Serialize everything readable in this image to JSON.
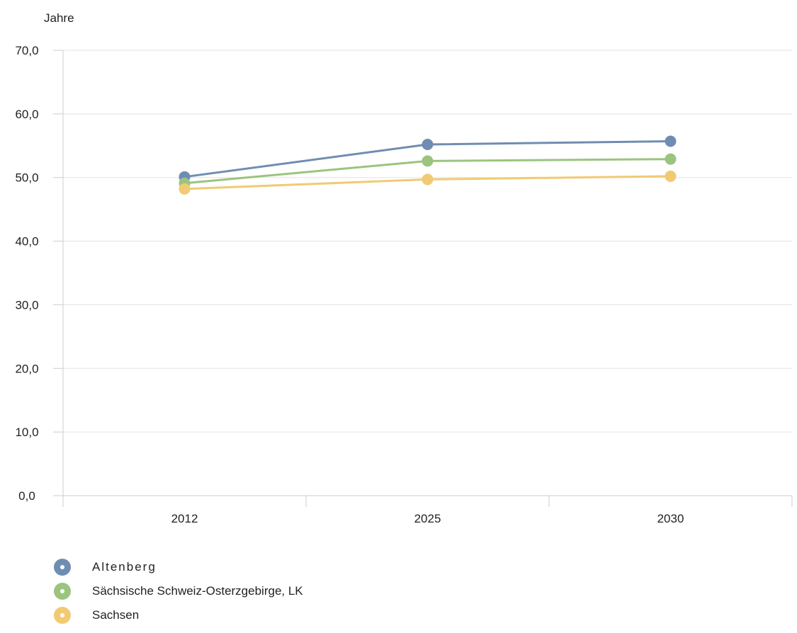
{
  "chart_data": {
    "type": "line",
    "ylabel": "Jahre",
    "categories": [
      "2012",
      "2025",
      "2030"
    ],
    "ylim": [
      0,
      70
    ],
    "yticks": [
      "0,0",
      "10,0",
      "20,0",
      "30,0",
      "40,0",
      "50,0",
      "60,0",
      "70,0"
    ],
    "grid": true,
    "legend_position": "bottom-left",
    "series": [
      {
        "name": "Altenberg",
        "color": "#6f8db3",
        "values": [
          50.1,
          55.2,
          55.7
        ]
      },
      {
        "name": "Sächsische Schweiz-Osterzgebirge, LK",
        "color": "#9bc47e",
        "values": [
          49.1,
          52.6,
          52.9
        ]
      },
      {
        "name": "Sachsen",
        "color": "#f1ca73",
        "values": [
          48.2,
          49.7,
          50.2
        ]
      }
    ]
  }
}
